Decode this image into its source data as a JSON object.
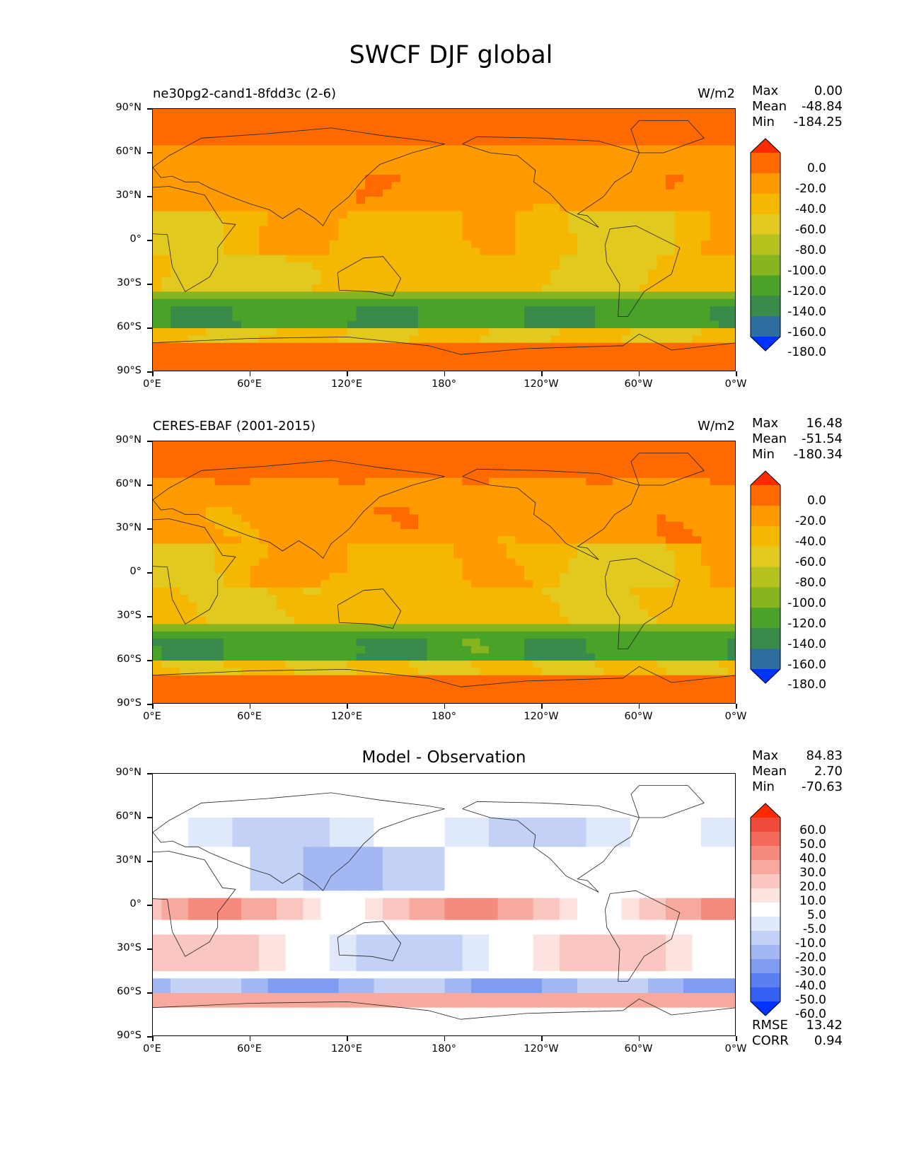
{
  "figure_title": "SWCF DJF global",
  "x_ticks": [
    "0°E",
    "60°E",
    "120°E",
    "180°",
    "120°W",
    "60°W",
    "0°W"
  ],
  "y_ticks": [
    "90°N",
    "60°N",
    "30°N",
    "0°",
    "30°S",
    "60°S",
    "90°S"
  ],
  "panels": [
    {
      "left_title": "ne30pg2-cand1-8fdd3c (2-6)",
      "right_title": "W/m2",
      "center_title": "",
      "stats": [
        {
          "label": "Max",
          "value": "0.00"
        },
        {
          "label": "Mean",
          "value": "-48.84"
        },
        {
          "label": "Min",
          "value": "-184.25"
        }
      ],
      "colorbar_levels": [
        "0.0",
        "-20.0",
        "-40.0",
        "-60.0",
        "-80.0",
        "-100.0",
        "-120.0",
        "-140.0",
        "-160.0",
        "-180.0"
      ],
      "colorbar_colors": [
        "#ff2a00",
        "#ff6a00",
        "#ff9a00",
        "#f5b800",
        "#e2c91f",
        "#b5c21d",
        "#86b51f",
        "#4aa229",
        "#3a8a4a",
        "#2c6fa0",
        "#0033ff"
      ]
    },
    {
      "left_title": "CERES-EBAF (2001-2015)",
      "right_title": "W/m2",
      "center_title": "",
      "stats": [
        {
          "label": "Max",
          "value": "16.48"
        },
        {
          "label": "Mean",
          "value": "-51.54"
        },
        {
          "label": "Min",
          "value": "-180.34"
        }
      ],
      "colorbar_levels": [
        "0.0",
        "-20.0",
        "-40.0",
        "-60.0",
        "-80.0",
        "-100.0",
        "-120.0",
        "-140.0",
        "-160.0",
        "-180.0"
      ],
      "colorbar_colors": [
        "#ff2a00",
        "#ff6a00",
        "#ff9a00",
        "#f5b800",
        "#e2c91f",
        "#b5c21d",
        "#86b51f",
        "#4aa229",
        "#3a8a4a",
        "#2c6fa0",
        "#0033ff"
      ]
    },
    {
      "left_title": "",
      "right_title": "",
      "center_title": "Model - Observation",
      "stats": [
        {
          "label": "Max",
          "value": "84.83"
        },
        {
          "label": "Mean",
          "value": "2.70"
        },
        {
          "label": "Min",
          "value": "-70.63"
        }
      ],
      "colorbar_levels": [
        "60.0",
        "50.0",
        "40.0",
        "30.0",
        "20.0",
        "10.0",
        "5.0",
        "-5.0",
        "-10.0",
        "-20.0",
        "-30.0",
        "-40.0",
        "-50.0",
        "-60.0"
      ],
      "colorbar_colors": [
        "#ff2a00",
        "#f04a3a",
        "#f46a5a",
        "#f68a7c",
        "#f8a99e",
        "#fac7c0",
        "#fde3df",
        "#ffffff",
        "#e0e8fb",
        "#c3d1f7",
        "#a3b8f3",
        "#7f9cf0",
        "#5a7ff0",
        "#3561f2",
        "#0033ff"
      ],
      "footer_stats": [
        {
          "label": "RMSE",
          "value": "13.42"
        },
        {
          "label": "CORR",
          "value": "0.94"
        }
      ]
    }
  ]
}
